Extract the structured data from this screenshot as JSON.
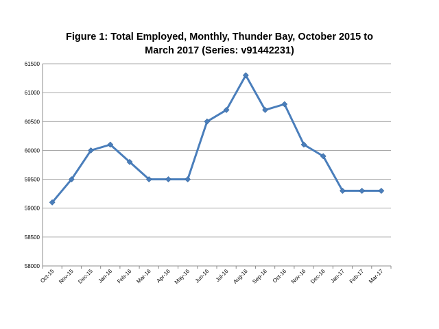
{
  "chart_data": {
    "type": "line",
    "title_line1": "Figure 1: Total Employed, Monthly, Thunder Bay, October 2015 to",
    "title_line2": "March 2017 (Series: v91442231)",
    "xlabel": "",
    "ylabel": "",
    "categories": [
      "Oct-15",
      "Nov-15",
      "Dec-15",
      "Jan-16",
      "Feb-16",
      "Mar-16",
      "Apr-16",
      "May-16",
      "Jun-16",
      "Jul-16",
      "Aug-16",
      "Sep-16",
      "Oct-16",
      "Nov-16",
      "Dec-16",
      "Jan-17",
      "Feb-17",
      "Mar-17"
    ],
    "series": [
      {
        "values": [
          59100,
          59500,
          60000,
          60100,
          59800,
          59500,
          59500,
          59500,
          60500,
          60700,
          61300,
          60700,
          60800,
          60100,
          59900,
          59300,
          59300,
          59300
        ],
        "color": "#4a7ebb"
      }
    ],
    "ylim": [
      58000,
      61500
    ],
    "yticks": [
      "58000",
      "58500",
      "59000",
      "59500",
      "60000",
      "60500",
      "61000",
      "61500"
    ],
    "grid": true,
    "legend": "none"
  }
}
